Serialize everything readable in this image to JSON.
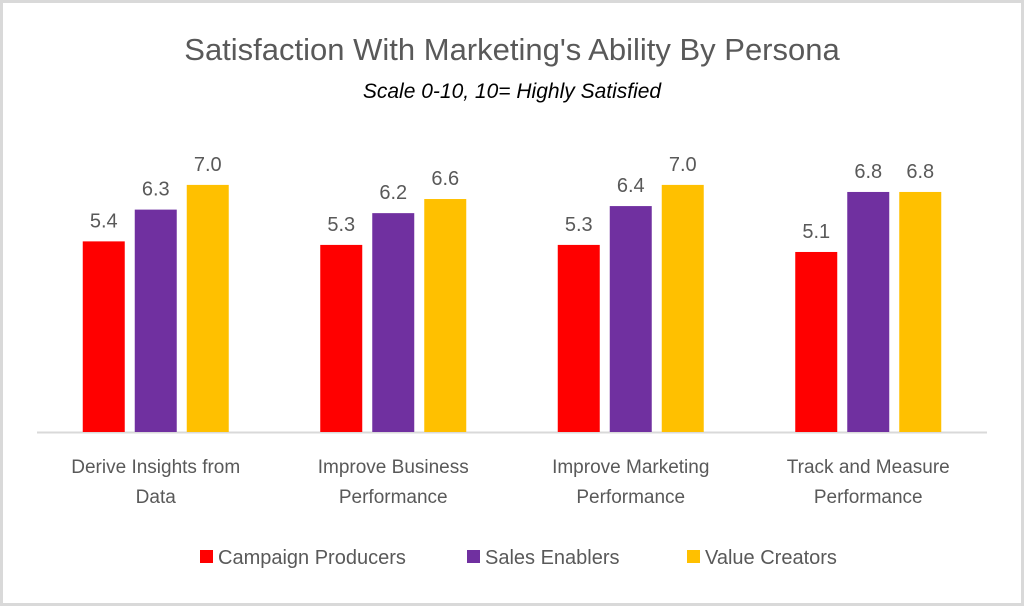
{
  "chart_data": {
    "type": "bar",
    "title": "Satisfaction With Marketing's Ability By Persona",
    "subtitle": "Scale 0-10, 10= Highly Satisfied",
    "categories": [
      [
        "Derive Insights from",
        "Data"
      ],
      [
        "Improve Business",
        "Performance"
      ],
      [
        "Improve Marketing",
        "Performance"
      ],
      [
        "Track and Measure",
        "Performance"
      ]
    ],
    "series": [
      {
        "name": "Campaign Producers",
        "color": "#FF0000",
        "values": [
          5.4,
          5.3,
          5.3,
          5.1
        ]
      },
      {
        "name": "Sales Enablers",
        "color": "#7030A0",
        "values": [
          6.3,
          6.2,
          6.4,
          6.8
        ]
      },
      {
        "name": "Value Creators",
        "color": "#FFC000",
        "values": [
          7.0,
          6.6,
          7.0,
          6.8
        ]
      }
    ],
    "ylim": [
      0,
      10
    ],
    "y_axis_visible": false,
    "grid": false,
    "data_labels": true,
    "legend_position": "bottom"
  }
}
